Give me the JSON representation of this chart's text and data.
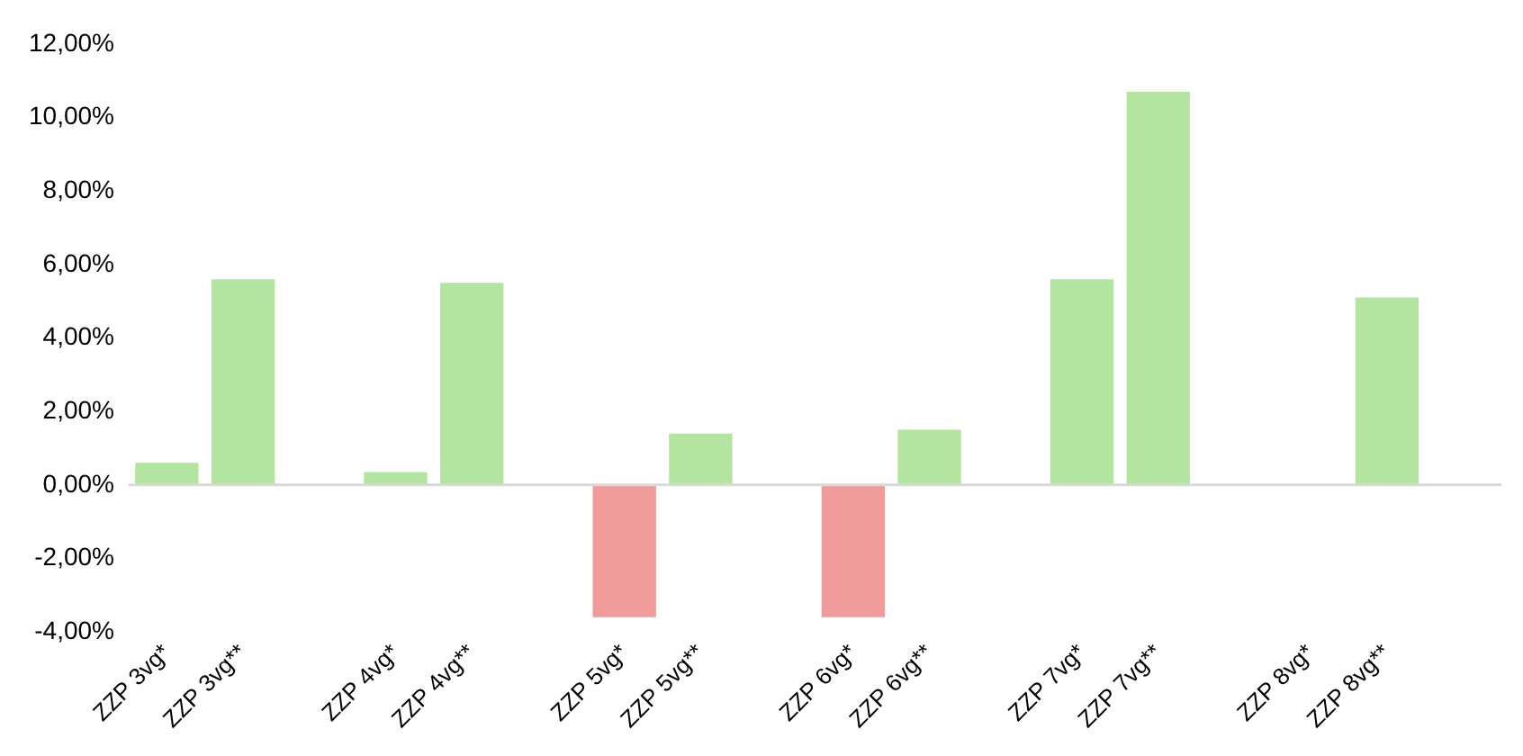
{
  "chart_data": {
    "type": "bar",
    "categories": [
      "ZZP 3vg*",
      "ZZP 3vg**",
      null,
      "ZZP 4vg*",
      "ZZP 4vg**",
      null,
      "ZZP 5vg*",
      "ZZP 5vg**",
      null,
      "ZZP 6vg*",
      "ZZP 6vg**",
      null,
      "ZZP 7vg*",
      "ZZP 7vg**",
      null,
      "ZZP 8vg*",
      "ZZP 8vg**",
      null
    ],
    "values": [
      0.6,
      5.6,
      null,
      0.35,
      5.5,
      null,
      -3.6,
      1.4,
      null,
      -3.6,
      1.5,
      null,
      5.6,
      10.7,
      null,
      0,
      5.1,
      null
    ],
    "colors": [
      "#b3e5a1",
      "#b3e5a1",
      null,
      "#b3e5a1",
      "#b3e5a1",
      null,
      "#f09b99",
      "#b3e5a1",
      null,
      "#f09b99",
      "#b3e5a1",
      null,
      "#b3e5a1",
      "#b3e5a1",
      null,
      "#b3e5a1",
      "#b3e5a1",
      null
    ],
    "ylim": [
      -4,
      12
    ],
    "yticks": [
      {
        "value": -4,
        "label": "-4,00%"
      },
      {
        "value": -2,
        "label": "-2,00%"
      },
      {
        "value": 0,
        "label": "0,00%"
      },
      {
        "value": 2,
        "label": "2,00%"
      },
      {
        "value": 4,
        "label": "4,00%"
      },
      {
        "value": 6,
        "label": "6,00%"
      },
      {
        "value": 8,
        "label": "8,00%"
      },
      {
        "value": 10,
        "label": "10,00%"
      },
      {
        "value": 12,
        "label": "12,00%"
      }
    ],
    "ref_lines": [
      {
        "axis": "y",
        "value": 0,
        "color": "#d9d9d9"
      }
    ],
    "grid": false,
    "legend": false
  }
}
